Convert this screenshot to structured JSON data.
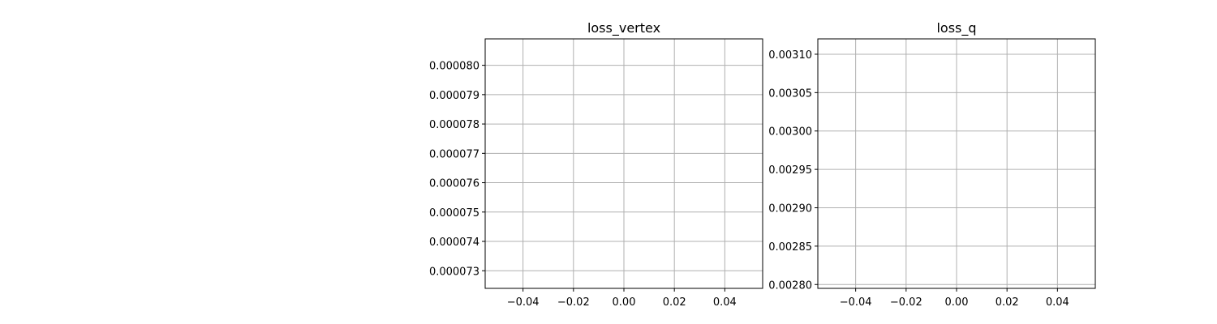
{
  "chart_data": [
    {
      "type": "line",
      "title": "loss_vertex",
      "xlabel": "",
      "ylabel": "",
      "xlim": [
        -0.055,
        0.055
      ],
      "ylim": [
        7.24e-05,
        8.09e-05
      ],
      "x_ticks": [
        -0.04,
        -0.02,
        0.0,
        0.02,
        0.04
      ],
      "x_tick_labels": [
        "−0.04",
        "−0.02",
        "0.00",
        "0.02",
        "0.04"
      ],
      "y_ticks": [
        7.3e-05,
        7.4e-05,
        7.5e-05,
        7.6e-05,
        7.7e-05,
        7.8e-05,
        7.9e-05,
        8e-05
      ],
      "y_tick_labels": [
        "0.000073",
        "0.000074",
        "0.000075",
        "0.000076",
        "0.000077",
        "0.000078",
        "0.000079",
        "0.000080"
      ],
      "grid": true,
      "series": []
    },
    {
      "type": "line",
      "title": "loss_q",
      "xlabel": "",
      "ylabel": "",
      "xlim": [
        -0.055,
        0.055
      ],
      "ylim": [
        0.002795,
        0.00312
      ],
      "x_ticks": [
        -0.04,
        -0.02,
        0.0,
        0.02,
        0.04
      ],
      "x_tick_labels": [
        "−0.04",
        "−0.02",
        "0.00",
        "0.02",
        "0.04"
      ],
      "y_ticks": [
        0.0028,
        0.00285,
        0.0029,
        0.00295,
        0.003,
        0.00305,
        0.0031
      ],
      "y_tick_labels": [
        "0.00280",
        "0.00285",
        "0.00290",
        "0.00295",
        "0.00300",
        "0.00305",
        "0.00310"
      ],
      "grid": true,
      "series": []
    }
  ]
}
